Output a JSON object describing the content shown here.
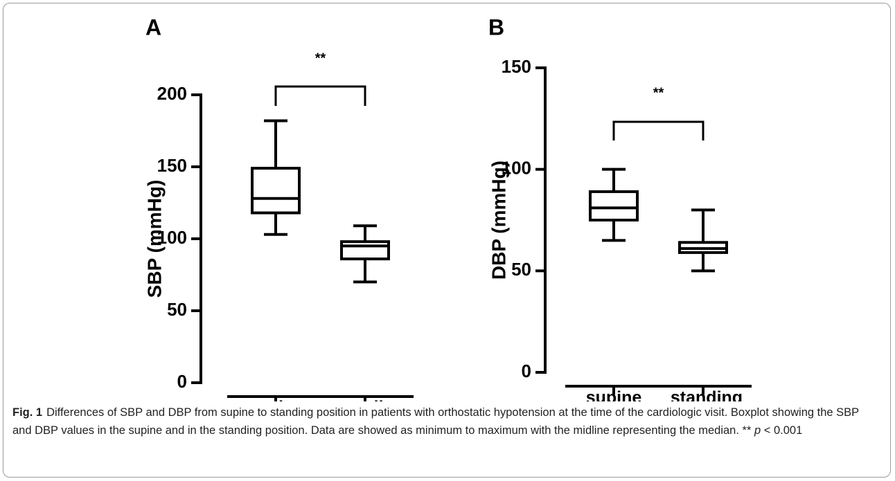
{
  "chart_data": [
    {
      "type": "box",
      "panel": "A",
      "ylabel": "SBP (mmHg)",
      "categories": [
        "supine",
        "standing"
      ],
      "min": [
        103,
        70
      ],
      "q1": [
        118,
        86
      ],
      "median": [
        128,
        95
      ],
      "q3": [
        149,
        98
      ],
      "max": [
        182,
        109
      ],
      "ylim": [
        0,
        200
      ],
      "yticks": [
        0,
        50,
        100,
        150,
        200
      ],
      "color": "#000000",
      "annotation": "**"
    },
    {
      "type": "box",
      "panel": "B",
      "ylabel": "DBP (mmHg)",
      "categories": [
        "supine",
        "standing"
      ],
      "min": [
        65,
        50
      ],
      "q1": [
        75,
        59
      ],
      "median": [
        81,
        61
      ],
      "q3": [
        89,
        64
      ],
      "max": [
        100,
        80
      ],
      "ylim": [
        0,
        150
      ],
      "yticks": [
        0,
        50,
        100,
        150
      ],
      "color": "#000000",
      "annotation": "**"
    }
  ],
  "caption": {
    "label": "Fig. 1",
    "text": "Differences of SBP and DBP from supine to standing position in patients with orthostatic hypotension at the time of the cardiologic visit. Boxplot showing the SBP and DBP values in the supine and in the standing position. Data are showed as minimum to maximum with the midline representing the median. **",
    "italic": "p",
    "tail": "< 0.001"
  }
}
